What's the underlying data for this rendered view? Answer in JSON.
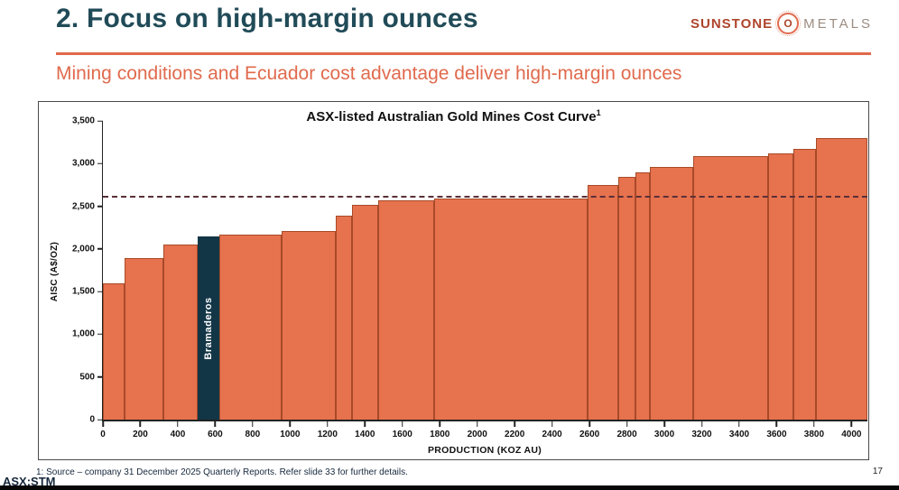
{
  "slide": {
    "title": "2. Focus on high-margin ounces",
    "footnote": "1:  Source – company 31 December 2025 Quarterly Reports.  Refer slide 33 for further details.",
    "page_number": "17",
    "ticker": "ASX:STM"
  },
  "logo": {
    "word1": "SUNSTONE",
    "icon_letter": "O",
    "word2": "METALS"
  },
  "subtitle": "Mining conditions and Ecuador cost advantage deliver high-margin ounces",
  "colors": {
    "accent_orange": "#E06A4D",
    "title_teal": "#214B58",
    "bar_fill": "#E7724E",
    "bar_border": "#A84A28",
    "highlight_bar": "#133647",
    "dashed_line": "#5A3038",
    "footer_navy": "#16283C",
    "logo_brown": "#AE452C",
    "logo_gray": "#9C8C82"
  },
  "chart_data": {
    "type": "bar",
    "variant": "cost-curve (variable-width step bars)",
    "title": "ASX-listed Australian Gold Mines Cost Curve",
    "title_superscript": "1",
    "xlabel": "PRODUCTION (KOZ AU)",
    "ylabel": "AISC (A$/OZ)",
    "xlim": [
      0,
      4085
    ],
    "ylim": [
      0,
      3500
    ],
    "grid": false,
    "legend": false,
    "reference_line": {
      "value": 2600,
      "style": "dashed"
    },
    "y_ticks": [
      {
        "value": 0,
        "label": "0"
      },
      {
        "value": 500,
        "label": "500"
      },
      {
        "value": 1000,
        "label": "1,000"
      },
      {
        "value": 1500,
        "label": "1,500"
      },
      {
        "value": 2000,
        "label": "2,000"
      },
      {
        "value": 2500,
        "label": "2,500"
      },
      {
        "value": 3000,
        "label": "3,000"
      },
      {
        "value": 3500,
        "label": "3,500"
      }
    ],
    "x_ticks": [
      {
        "value": 0,
        "label": "0"
      },
      {
        "value": 200,
        "label": "200"
      },
      {
        "value": 400,
        "label": "400"
      },
      {
        "value": 600,
        "label": "600"
      },
      {
        "value": 800,
        "label": "800"
      },
      {
        "value": 1000,
        "label": "1000"
      },
      {
        "value": 1200,
        "label": "1200"
      },
      {
        "value": 1400,
        "label": "1400"
      },
      {
        "value": 1600,
        "label": "1600"
      },
      {
        "value": 1800,
        "label": "1800"
      },
      {
        "value": 2000,
        "label": "2000"
      },
      {
        "value": 2200,
        "label": "2200"
      },
      {
        "value": 2400,
        "label": "2400"
      },
      {
        "value": 2600,
        "label": "2600"
      },
      {
        "value": 2800,
        "label": "2800"
      },
      {
        "value": 3000,
        "label": "3000"
      },
      {
        "value": 3200,
        "label": "3200"
      },
      {
        "value": 3400,
        "label": "3400"
      },
      {
        "value": 3600,
        "label": "3600"
      },
      {
        "value": 3800,
        "label": "3800"
      },
      {
        "value": 4000,
        "label": "4000"
      }
    ],
    "bars": [
      {
        "start": 0,
        "end": 115,
        "value": 1600
      },
      {
        "start": 115,
        "end": 325,
        "value": 1890
      },
      {
        "start": 325,
        "end": 505,
        "value": 2050
      },
      {
        "start": 505,
        "end": 620,
        "value": 2150,
        "label": "Bramaderos",
        "highlight": true
      },
      {
        "start": 620,
        "end": 955,
        "value": 2170
      },
      {
        "start": 955,
        "end": 1245,
        "value": 2210
      },
      {
        "start": 1245,
        "end": 1330,
        "value": 2390
      },
      {
        "start": 1330,
        "end": 1470,
        "value": 2520
      },
      {
        "start": 1470,
        "end": 1770,
        "value": 2570
      },
      {
        "start": 1770,
        "end": 2590,
        "value": 2590
      },
      {
        "start": 2590,
        "end": 2755,
        "value": 2750
      },
      {
        "start": 2755,
        "end": 2845,
        "value": 2840
      },
      {
        "start": 2845,
        "end": 2925,
        "value": 2900
      },
      {
        "start": 2925,
        "end": 3155,
        "value": 2960
      },
      {
        "start": 3155,
        "end": 3555,
        "value": 3090
      },
      {
        "start": 3555,
        "end": 3690,
        "value": 3120
      },
      {
        "start": 3690,
        "end": 3810,
        "value": 3170
      },
      {
        "start": 3810,
        "end": 4085,
        "value": 3300
      }
    ]
  }
}
